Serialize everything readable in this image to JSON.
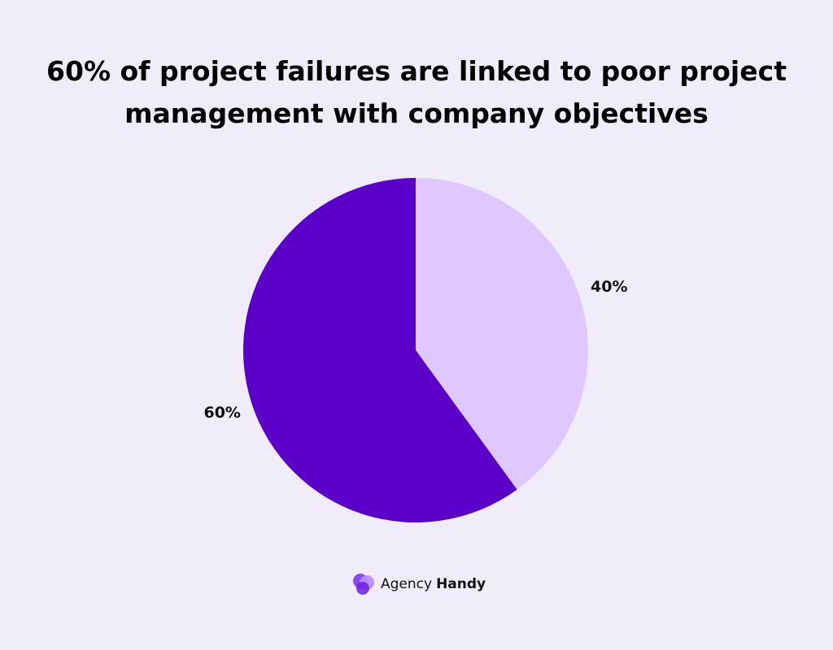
{
  "chart_data": {
    "type": "pie",
    "title": "60% of project failures are linked to poor project management with company objectives",
    "values": [
      40,
      60
    ],
    "value_labels": [
      "40%",
      "60%"
    ],
    "colors": [
      "#dfc7ff",
      "#5a00c8"
    ],
    "start_angle": 0,
    "direction": "clockwise"
  },
  "footer": {
    "brand_prefix": "Agency",
    "brand_name": "Handy"
  }
}
